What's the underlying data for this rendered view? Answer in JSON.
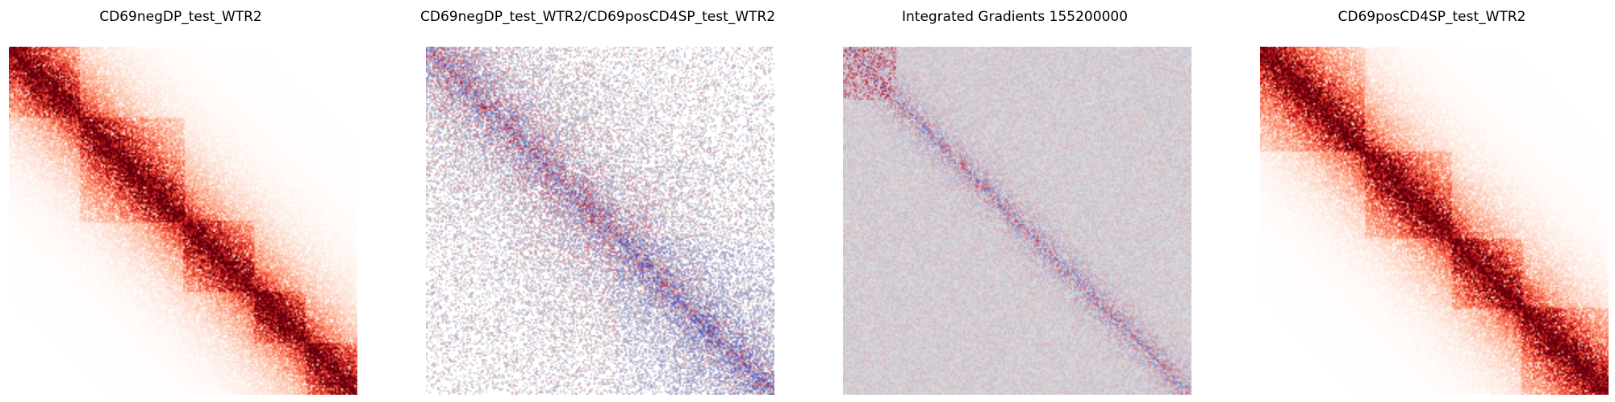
{
  "chart_data": [
    {
      "type": "heatmap",
      "title": "CD69negDP_test_WTR2",
      "colormap": "Reds",
      "pattern": "contact-map",
      "tad_boundaries": [
        0.0,
        0.2,
        0.5,
        0.7,
        0.85,
        1.0
      ]
    },
    {
      "type": "heatmap",
      "title": "CD69negDP_test_WTR2/CD69posCD4SP_test_WTR2",
      "colormap": "coolwarm",
      "pattern": "ratio"
    },
    {
      "type": "heatmap",
      "title": "Integrated Gradients 155200000",
      "colormap": "coolwarm",
      "pattern": "attribution"
    },
    {
      "type": "heatmap",
      "title": "CD69posCD4SP_test_WTR2",
      "colormap": "Reds",
      "pattern": "contact-map",
      "tad_boundaries": [
        0.0,
        0.3,
        0.55,
        0.75,
        1.0
      ]
    }
  ]
}
